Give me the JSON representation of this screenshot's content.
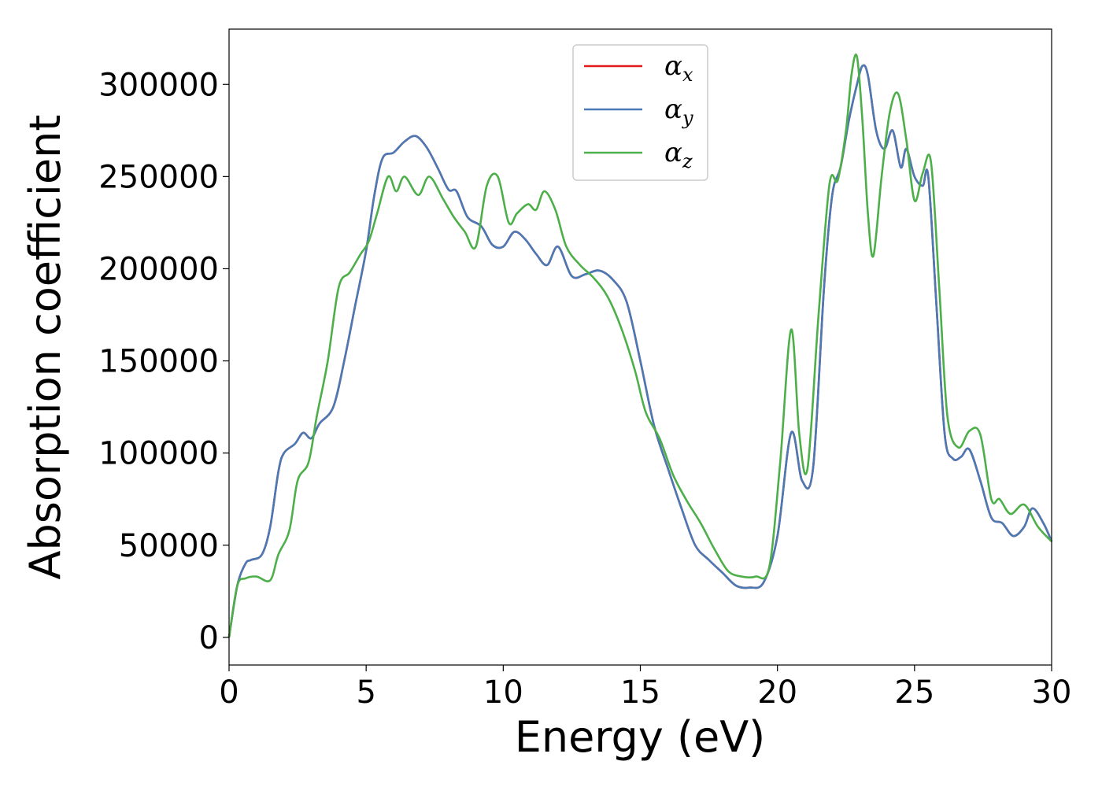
{
  "chart_data": {
    "type": "line",
    "title": "",
    "xlabel": "Energy (eV)",
    "ylabel": "Absorption coefficient",
    "xlim": [
      0,
      30
    ],
    "ylim": [
      -15000,
      330000
    ],
    "xticks": [
      "0",
      "5",
      "10",
      "15",
      "20",
      "25",
      "30"
    ],
    "yticks": [
      "0",
      "50000",
      "100000",
      "150000",
      "200000",
      "250000",
      "300000"
    ],
    "grid": false,
    "legend_position": "top-center",
    "series": [
      {
        "name": "αx",
        "legend_symbol": "α",
        "legend_sub": "x",
        "color": "#e41a1c",
        "x": [
          0,
          0.3,
          0.6,
          0.8,
          1.2,
          1.5,
          1.8,
          2.0,
          2.4,
          2.7,
          3.0,
          3.3,
          3.8,
          4.2,
          4.6,
          5.0,
          5.3,
          5.6,
          6.0,
          6.4,
          6.8,
          7.2,
          7.6,
          8.0,
          8.3,
          8.7,
          9.2,
          9.6,
          10.0,
          10.4,
          10.8,
          11.2,
          11.6,
          12.0,
          12.5,
          13.0,
          13.5,
          14.0,
          14.5,
          15.0,
          15.5,
          16.0,
          16.5,
          17.0,
          17.5,
          18.0,
          18.5,
          19.0,
          19.5,
          20.0,
          20.5,
          20.9,
          21.3,
          21.7,
          22.0,
          22.3,
          22.6,
          22.9,
          23.1,
          23.3,
          23.6,
          23.9,
          24.2,
          24.5,
          24.7,
          25.0,
          25.3,
          25.5,
          25.8,
          26.1,
          26.4,
          26.7,
          27.0,
          27.4,
          27.8,
          28.2,
          28.6,
          29.0,
          29.3,
          29.7,
          30.0
        ],
        "y": [
          0,
          28000,
          40000,
          42000,
          45000,
          60000,
          90000,
          100000,
          105000,
          111000,
          108000,
          116000,
          125000,
          150000,
          180000,
          210000,
          240000,
          260000,
          263000,
          269000,
          272000,
          266000,
          255000,
          243000,
          242000,
          228000,
          223000,
          213000,
          212000,
          220000,
          216000,
          208000,
          202000,
          212000,
          196000,
          197000,
          199000,
          194000,
          182000,
          150000,
          115000,
          92000,
          70000,
          50000,
          42000,
          35000,
          28000,
          27000,
          30000,
          55000,
          111000,
          85000,
          92000,
          190000,
          240000,
          255000,
          280000,
          300000,
          310000,
          305000,
          275000,
          265000,
          275000,
          255000,
          265000,
          250000,
          245000,
          250000,
          180000,
          110000,
          97000,
          98000,
          102000,
          85000,
          65000,
          62000,
          55000,
          60000,
          70000,
          62000,
          52000
        ]
      },
      {
        "name": "αy",
        "legend_symbol": "α",
        "legend_sub": "y",
        "color": "#4a7ab5",
        "x": [
          0,
          0.3,
          0.6,
          0.8,
          1.2,
          1.5,
          1.8,
          2.0,
          2.4,
          2.7,
          3.0,
          3.3,
          3.8,
          4.2,
          4.6,
          5.0,
          5.3,
          5.6,
          6.0,
          6.4,
          6.8,
          7.2,
          7.6,
          8.0,
          8.3,
          8.7,
          9.2,
          9.6,
          10.0,
          10.4,
          10.8,
          11.2,
          11.6,
          12.0,
          12.5,
          13.0,
          13.5,
          14.0,
          14.5,
          15.0,
          15.5,
          16.0,
          16.5,
          17.0,
          17.5,
          18.0,
          18.5,
          19.0,
          19.5,
          20.0,
          20.5,
          20.9,
          21.3,
          21.7,
          22.0,
          22.3,
          22.6,
          22.9,
          23.1,
          23.3,
          23.6,
          23.9,
          24.2,
          24.5,
          24.7,
          25.0,
          25.3,
          25.5,
          25.8,
          26.1,
          26.4,
          26.7,
          27.0,
          27.4,
          27.8,
          28.2,
          28.6,
          29.0,
          29.3,
          29.7,
          30.0
        ],
        "y": [
          0,
          28000,
          40000,
          42000,
          45000,
          60000,
          90000,
          100000,
          105000,
          111000,
          108000,
          116000,
          125000,
          150000,
          180000,
          210000,
          240000,
          260000,
          263000,
          269000,
          272000,
          266000,
          255000,
          243000,
          242000,
          228000,
          223000,
          213000,
          212000,
          220000,
          216000,
          208000,
          202000,
          212000,
          196000,
          197000,
          199000,
          194000,
          182000,
          150000,
          115000,
          92000,
          70000,
          50000,
          42000,
          35000,
          28000,
          27000,
          30000,
          55000,
          111000,
          85000,
          92000,
          190000,
          240000,
          255000,
          280000,
          300000,
          310000,
          305000,
          275000,
          265000,
          275000,
          255000,
          265000,
          250000,
          245000,
          250000,
          180000,
          110000,
          97000,
          98000,
          102000,
          85000,
          65000,
          62000,
          55000,
          60000,
          70000,
          62000,
          52000
        ]
      },
      {
        "name": "αz",
        "legend_symbol": "α",
        "legend_sub": "z",
        "color": "#4daf4a",
        "x": [
          0,
          0.3,
          0.6,
          1.0,
          1.5,
          1.8,
          2.2,
          2.5,
          2.9,
          3.2,
          3.6,
          4.0,
          4.4,
          4.8,
          5.1,
          5.4,
          5.8,
          6.1,
          6.4,
          6.9,
          7.3,
          7.8,
          8.2,
          8.6,
          9.0,
          9.4,
          9.8,
          10.2,
          10.5,
          10.9,
          11.2,
          11.5,
          11.9,
          12.3,
          12.8,
          13.3,
          13.8,
          14.3,
          14.8,
          15.2,
          15.7,
          16.2,
          16.7,
          17.2,
          17.7,
          18.2,
          18.7,
          19.2,
          19.7,
          20.1,
          20.5,
          20.8,
          21.1,
          21.5,
          21.9,
          22.2,
          22.5,
          22.7,
          22.9,
          23.1,
          23.3,
          23.5,
          23.8,
          24.1,
          24.4,
          24.7,
          25.0,
          25.3,
          25.6,
          25.9,
          26.2,
          26.6,
          27.0,
          27.4,
          27.8,
          28.1,
          28.5,
          29.0,
          29.5,
          30.0
        ],
        "y": [
          0,
          28000,
          32000,
          33000,
          31000,
          45000,
          58000,
          85000,
          95000,
          120000,
          150000,
          190000,
          198000,
          208000,
          215000,
          230000,
          250000,
          242000,
          250000,
          240000,
          250000,
          238000,
          228000,
          220000,
          212000,
          245000,
          250000,
          225000,
          230000,
          235000,
          232000,
          242000,
          232000,
          212000,
          202000,
          195000,
          185000,
          168000,
          145000,
          122000,
          108000,
          88000,
          74000,
          62000,
          48000,
          36000,
          33000,
          33000,
          38000,
          95000,
          167000,
          110000,
          92000,
          175000,
          246000,
          248000,
          275000,
          305000,
          315000,
          280000,
          230000,
          207000,
          250000,
          285000,
          295000,
          270000,
          237000,
          252000,
          258000,
          190000,
          120000,
          103000,
          112000,
          110000,
          75000,
          75000,
          67000,
          72000,
          60000,
          52000
        ]
      }
    ]
  }
}
